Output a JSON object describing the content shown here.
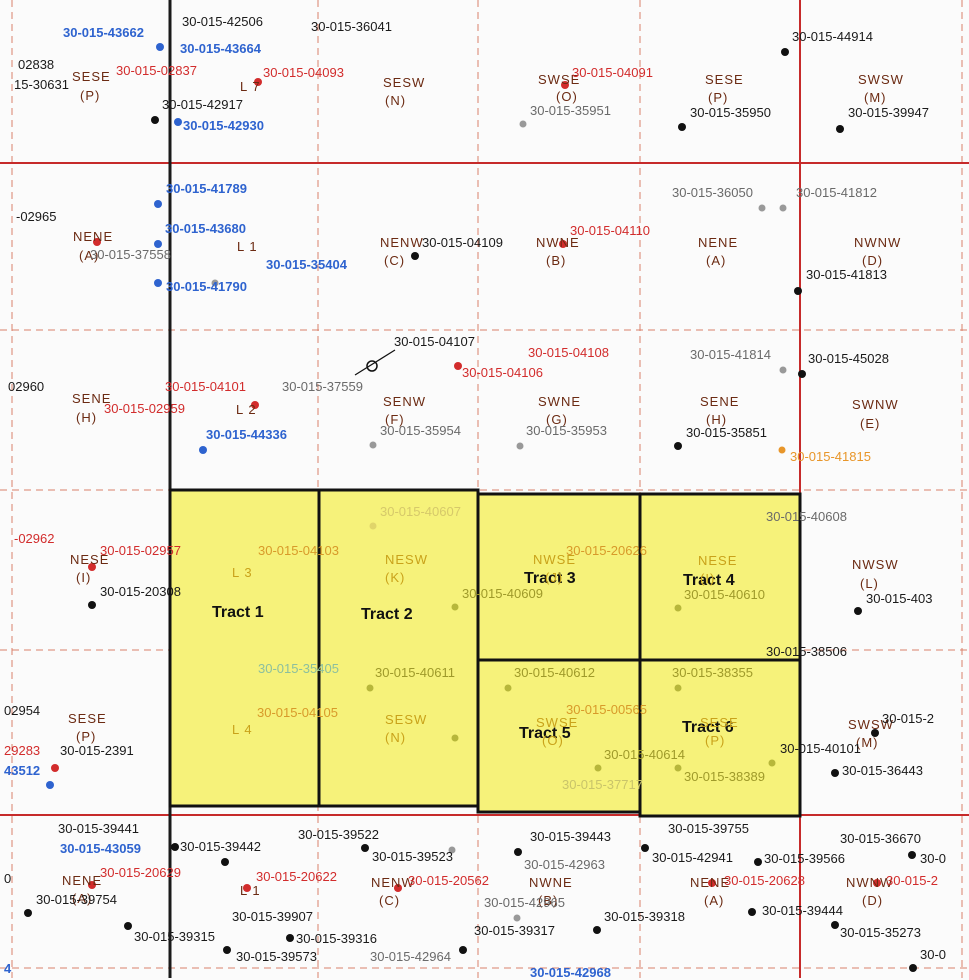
{
  "tracts": [
    {
      "label": "Tract 1"
    },
    {
      "label": "Tract 2"
    },
    {
      "label": "Tract 3"
    },
    {
      "label": "Tract 4"
    },
    {
      "label": "Tract 5"
    },
    {
      "label": "Tract 6"
    }
  ],
  "lots": {
    "l7": "L 7",
    "l1": "L 1",
    "l2": "L 2",
    "l3": "L 3",
    "l4": "L 4",
    "l1b": "L 1"
  },
  "quarters": {
    "r1": [
      "SESE",
      "(P)",
      "SESW",
      "(N)",
      "SWSE",
      "(O)",
      "SESE",
      "(P)",
      "SWSW",
      "(M)"
    ],
    "r2": [
      "NENE",
      "(A)",
      "NENW",
      "(C)",
      "NWNE",
      "(B)",
      "NENE",
      "(A)",
      "NWNW",
      "(D)"
    ],
    "r3": [
      "SENE",
      "(H)",
      "SENW",
      "(F)",
      "SWNE",
      "(G)",
      "SENE",
      "(H)",
      "SWNW",
      "(E)"
    ],
    "r4": [
      "NESE",
      "(I)",
      "NESW",
      "(K)",
      "NWSE",
      "(J)",
      "NESE",
      "(I)",
      "NWSW",
      "(L)"
    ],
    "r5": [
      "SESE",
      "(P)",
      "SESW",
      "(N)",
      "SWSE",
      "(O)",
      "SESE",
      "(P)",
      "SWSW",
      "(M)"
    ],
    "r6": [
      "NENE",
      "(A)",
      "NENW",
      "(C)",
      "NWNE",
      "(B)",
      "NENE",
      "(A)",
      "NWNW",
      "(D)"
    ]
  },
  "wells": {
    "w01": "30-015-43662",
    "w02": "30-015-42506",
    "w03": "30-015-36041",
    "w04": "30-015-43664",
    "w05": "30-015-02837",
    "w06": "30-015-04093",
    "w07": "30-015-04091",
    "w08": "30-015-44914",
    "w09": "30-015-42917",
    "w10": "30-015-42930",
    "w11": "30-015-35951",
    "w12": "30-015-35950",
    "w13": "30-015-39947",
    "w14": "02838",
    "w15": "15-30631",
    "w16": "30-015-41789",
    "w17": "30-015-43680",
    "w18": "30-015-37558",
    "w19": "30-015-35404",
    "w20": "30-015-41790",
    "w21": "30-015-04109",
    "w22": "30-015-04110",
    "w23": "30-015-36050",
    "w24": "30-015-41812",
    "w25": "30-015-41813",
    "w26": "-02965",
    "w27": "30-015-04107",
    "w28": "30-015-04108",
    "w29": "30-015-04106",
    "w30": "30-015-04101",
    "w31": "30-015-37559",
    "w32": "30-015-02959",
    "w33": "30-015-44336",
    "w34": "30-015-35954",
    "w35": "30-015-35953",
    "w36": "30-015-41814",
    "w37": "30-015-45028",
    "w38": "30-015-35851",
    "w39": "30-015-41815",
    "w40": "02960",
    "w41": "-02962",
    "w42": "30-015-02957",
    "w43": "30-015-04103",
    "w44": "30-015-40607",
    "w45": "30-015-20626",
    "w46": "30-015-40608",
    "w47": "30-015-20308",
    "w48": "30-015-40609",
    "w49": "30-015-40610",
    "w50": "30-015-403",
    "w51": "30-015-38506",
    "w52": "30-015-35405",
    "w53": "30-015-40611",
    "w54": "30-015-40612",
    "w55": "30-015-38355",
    "w56": "30-015-04105",
    "w57": "30-015-00565",
    "w58": "30-015-40614",
    "w59": "30-015-40101",
    "w60": "30-015-36443",
    "w61": "30-015-2",
    "w62": "30-015-2391",
    "w63": "02954",
    "w64": "29283",
    "w65": "43512",
    "w66": "30-015-37717",
    "w67": "30-015-38389",
    "w68": "30-015-39441",
    "w69": "30-015-43059",
    "w70": "30-015-39442",
    "w71": "30-015-39522",
    "w72": "30-015-39523",
    "w73": "30-015-39443",
    "w74": "30-015-42963",
    "w75": "30-015-39755",
    "w76": "30-015-42941",
    "w77": "30-015-39566",
    "w78": "30-015-36670",
    "w79": "30-0",
    "w80": "30-015-20629",
    "w81": "30-015-20622",
    "w82": "30-015-20562",
    "w83": "30-015-20628",
    "w84": "30-015-2",
    "w85": "30-015-39754",
    "w86": "30-015-42965",
    "w87": "30-015-39318",
    "w88": "30-015-39444",
    "w89": "30-015-39907",
    "w90": "30-015-39315",
    "w91": "30-015-39316",
    "w92": "30-015-39317",
    "w93": "30-015-35273",
    "w94": "30-015-39573",
    "w95": "30-015-42964",
    "w96": "30-0",
    "w97": "30-015-42968",
    "w98": "0",
    "w99": "4"
  },
  "colors": {
    "tract_fill": "#f6f27a",
    "section_line": "#c62a2a",
    "grid_dash": "#d9826b",
    "tract_border": "#111111"
  }
}
